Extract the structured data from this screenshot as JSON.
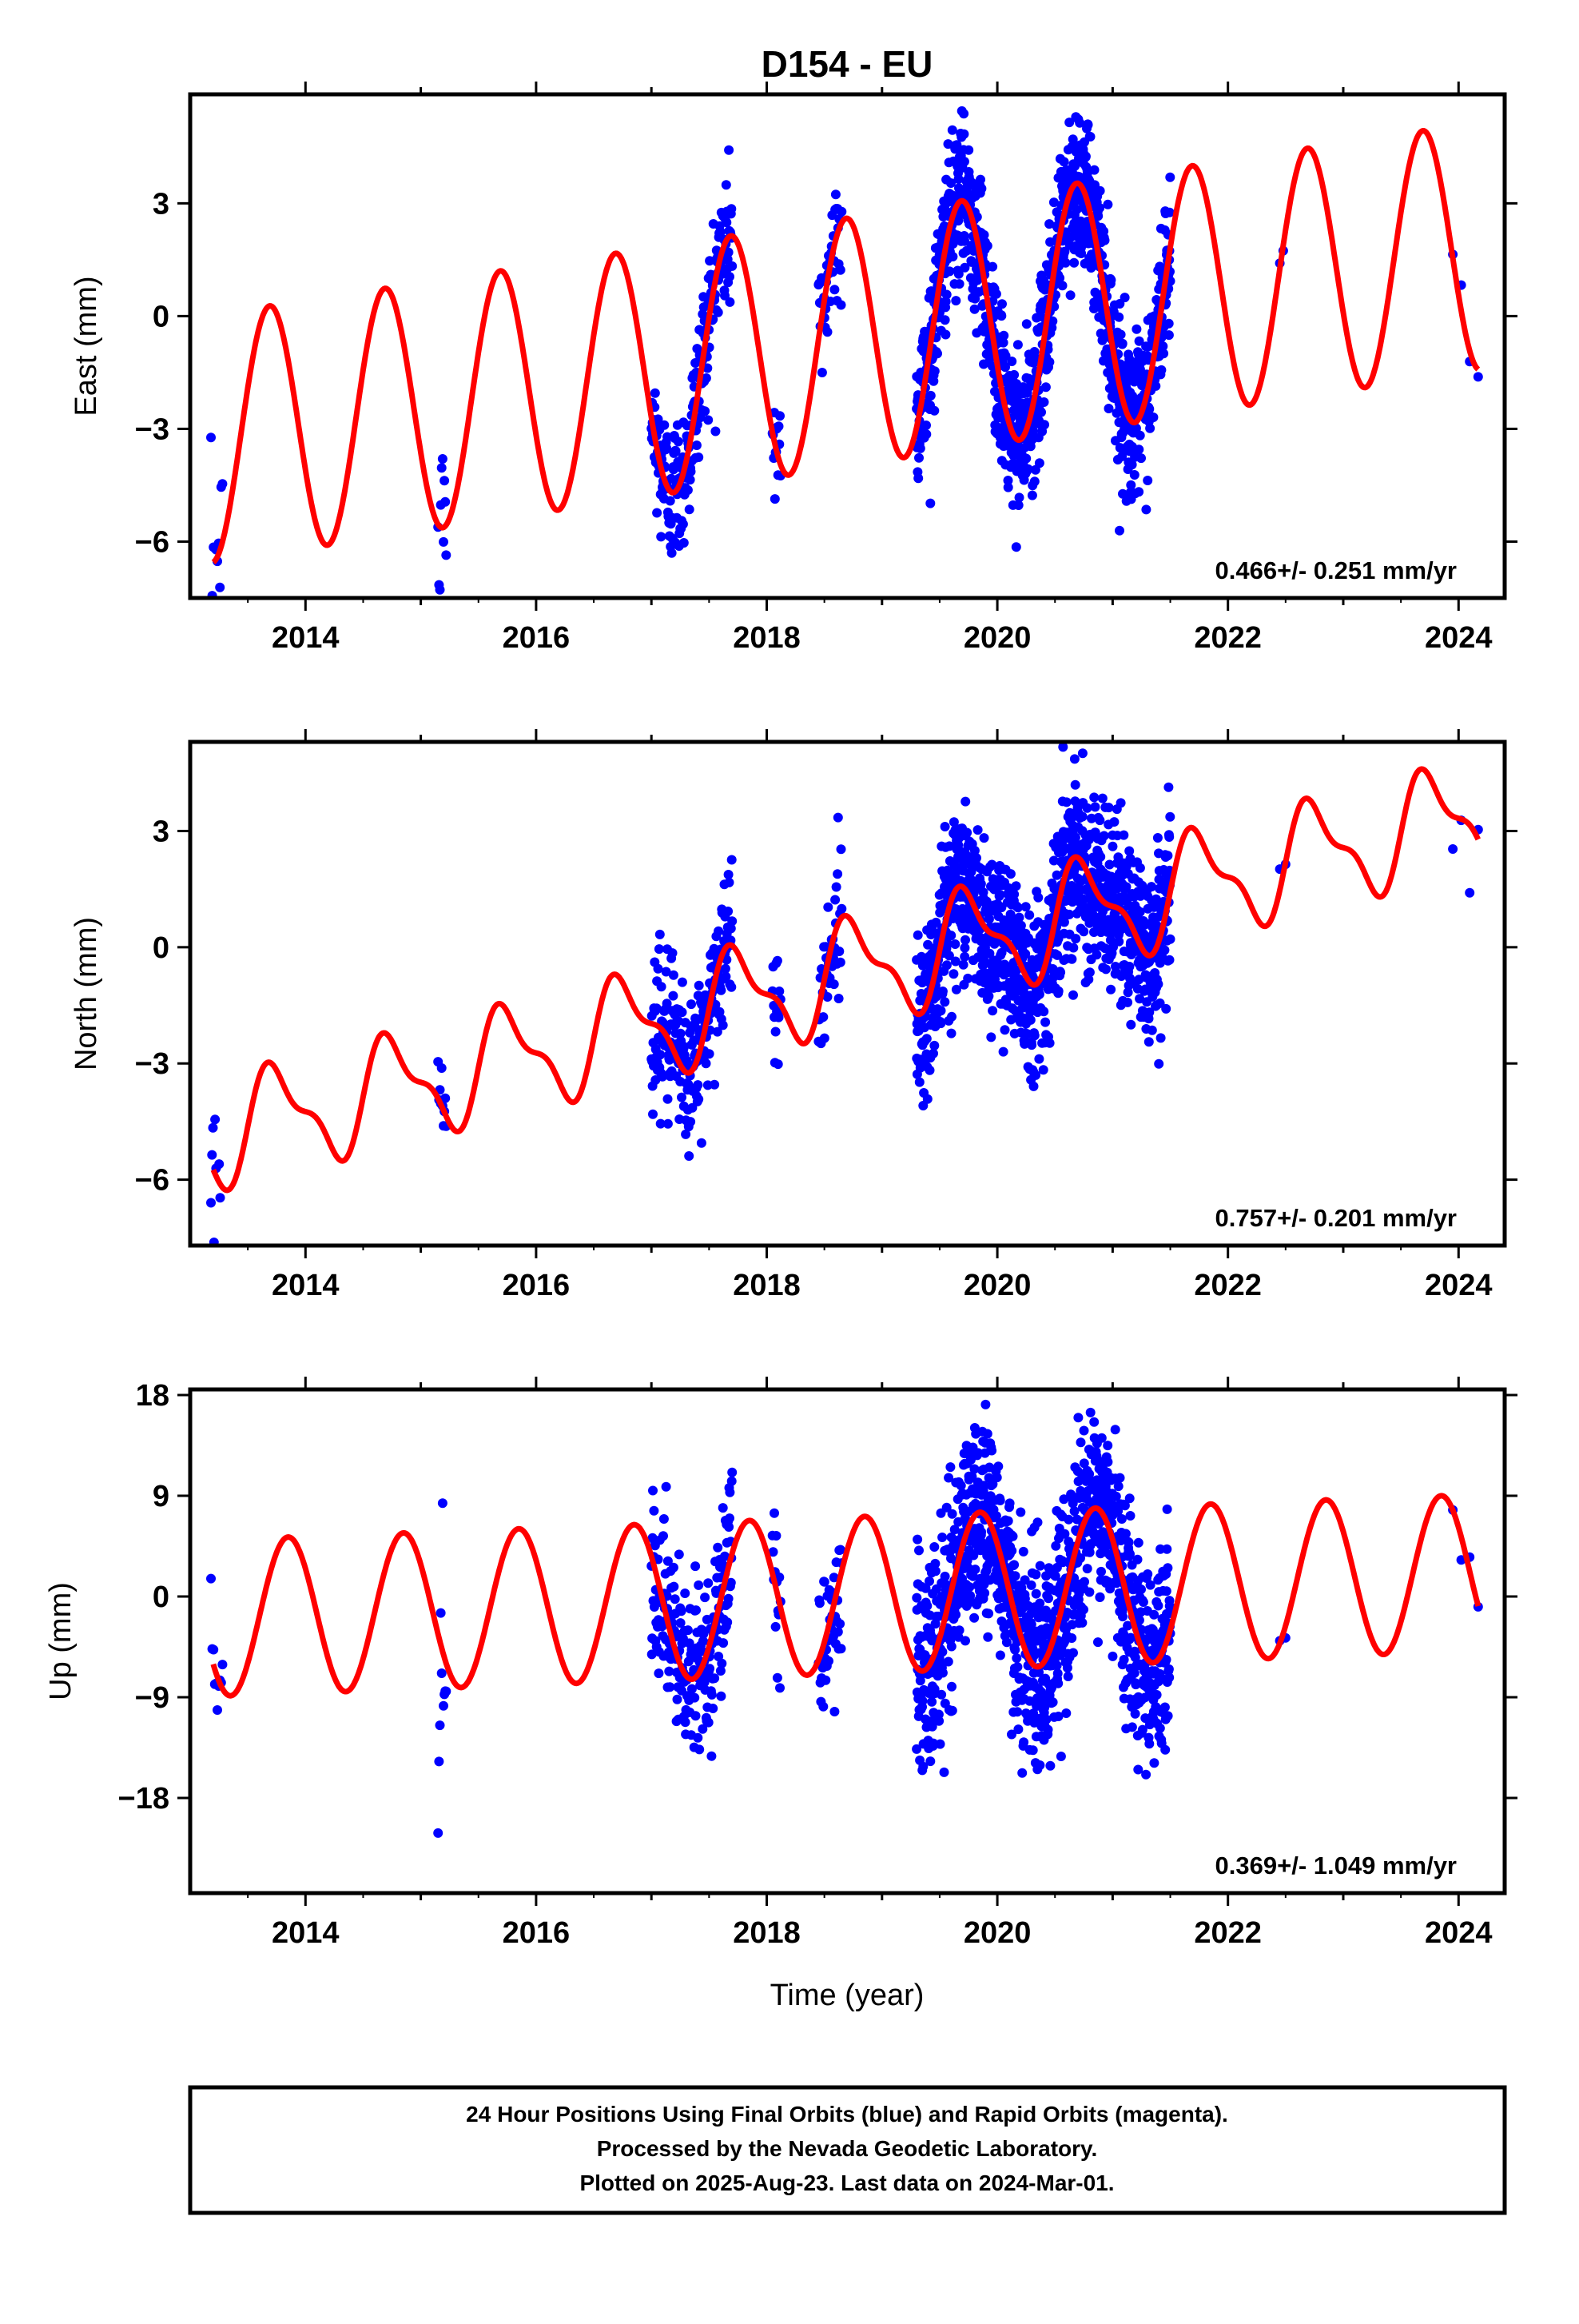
{
  "title": "D154 - EU",
  "x_axis": {
    "label": "Time (year)",
    "ticks": [
      "2014",
      "2016",
      "2018",
      "2020",
      "2022",
      "2024"
    ]
  },
  "footer": {
    "lines": [
      "24 Hour Positions Using Final Orbits (blue) and Rapid Orbits (magenta).",
      "Processed by the Nevada Geodetic Laboratory.",
      "Plotted on 2025-Aug-23. Last data on 2024-Mar-01."
    ]
  },
  "colors": {
    "final_orbits": "#0000ff",
    "model_fit": "#ff0000",
    "frame": "#000000"
  },
  "chart_data": [
    {
      "type": "scatter",
      "title": "",
      "ylabel": "East (mm)",
      "xlim": [
        2013.0,
        2024.4
      ],
      "ylim": [
        -7.5,
        5.9
      ],
      "yticks": [
        "3",
        "0",
        "-3",
        "-6"
      ],
      "yticks_values": [
        3,
        0,
        -3,
        -6
      ],
      "rate_label": "0.466+/- 0.251 mm/yr",
      "model": {
        "rate": 0.466,
        "annual_amp": 3.3,
        "annual_phase_year": 2013.44,
        "semi_annual_amp": 0.0,
        "semi_annual_phase_year": 2013.6,
        "offset_at_2013": -3.35
      },
      "segments": [
        {
          "start": 2013.18,
          "end": 2013.28,
          "n": 10,
          "scatter": 1.2
        },
        {
          "start": 2015.15,
          "end": 2015.22,
          "n": 10,
          "scatter": 1.2
        },
        {
          "start": 2017.0,
          "end": 2017.7,
          "n": 220,
          "scatter": 1.0
        },
        {
          "start": 2018.05,
          "end": 2018.12,
          "n": 14,
          "scatter": 1.0
        },
        {
          "start": 2018.45,
          "end": 2018.65,
          "n": 40,
          "scatter": 1.0
        },
        {
          "start": 2019.3,
          "end": 2021.5,
          "n": 1200,
          "scatter": 1.0
        },
        {
          "start": 2022.45,
          "end": 2022.48,
          "n": 2,
          "scatter": 0.4
        },
        {
          "start": 2023.95,
          "end": 2024.17,
          "n": 4,
          "scatter": 0.6
        }
      ]
    },
    {
      "type": "scatter",
      "title": "",
      "ylabel": "North (mm)",
      "xlim": [
        2013.0,
        2024.4
      ],
      "ylim": [
        -7.7,
        5.3
      ],
      "yticks": [
        "3",
        "0",
        "-3",
        "-6"
      ],
      "yticks_values": [
        3,
        0,
        -3,
        -6
      ],
      "rate_label": "0.757+/- 0.201 mm/yr",
      "model": {
        "rate": 0.757,
        "annual_amp": 1.25,
        "annual_phase_year": 2013.5,
        "semi_annual_amp": 0.5,
        "semi_annual_phase_year": 2013.5,
        "offset_at_2013": -5.0
      },
      "segments": [
        {
          "start": 2013.18,
          "end": 2013.26,
          "n": 10,
          "scatter": 1.0
        },
        {
          "start": 2015.15,
          "end": 2015.22,
          "n": 10,
          "scatter": 0.8
        },
        {
          "start": 2017.0,
          "end": 2017.7,
          "n": 220,
          "scatter": 1.0
        },
        {
          "start": 2018.05,
          "end": 2018.12,
          "n": 14,
          "scatter": 0.8
        },
        {
          "start": 2018.45,
          "end": 2018.65,
          "n": 40,
          "scatter": 0.8
        },
        {
          "start": 2019.3,
          "end": 2021.5,
          "n": 1200,
          "scatter": 1.1
        },
        {
          "start": 2022.45,
          "end": 2022.5,
          "n": 2,
          "scatter": 0.8
        },
        {
          "start": 2023.95,
          "end": 2024.17,
          "n": 4,
          "scatter": 0.8
        }
      ]
    },
    {
      "type": "scatter",
      "title": "",
      "ylabel": "Up (mm)",
      "xlim": [
        2013.0,
        2024.4
      ],
      "ylim": [
        -26.5,
        18.5
      ],
      "yticks": [
        "18",
        "9",
        "0",
        "-9",
        "-18"
      ],
      "yticks_values": [
        18,
        9,
        0,
        -9,
        -18
      ],
      "rate_label": "0.369+/- 1.049 mm/yr",
      "model": {
        "rate": 0.369,
        "annual_amp": 7.0,
        "annual_phase_year": 2013.6,
        "semi_annual_amp": 0.0,
        "semi_annual_phase_year": 2013.6,
        "offset_at_2013": -2.0
      },
      "segments": [
        {
          "start": 2013.18,
          "end": 2013.28,
          "n": 10,
          "scatter": 3.0
        },
        {
          "start": 2015.15,
          "end": 2015.22,
          "n": 10,
          "scatter": 6.0
        },
        {
          "start": 2017.0,
          "end": 2017.7,
          "n": 220,
          "scatter": 4.0
        },
        {
          "start": 2018.05,
          "end": 2018.12,
          "n": 14,
          "scatter": 4.0
        },
        {
          "start": 2018.45,
          "end": 2018.65,
          "n": 40,
          "scatter": 4.0
        },
        {
          "start": 2019.3,
          "end": 2021.5,
          "n": 1200,
          "scatter": 4.5
        },
        {
          "start": 2022.45,
          "end": 2022.5,
          "n": 2,
          "scatter": 2.0
        },
        {
          "start": 2023.95,
          "end": 2024.17,
          "n": 4,
          "scatter": 3.0
        }
      ]
    }
  ]
}
